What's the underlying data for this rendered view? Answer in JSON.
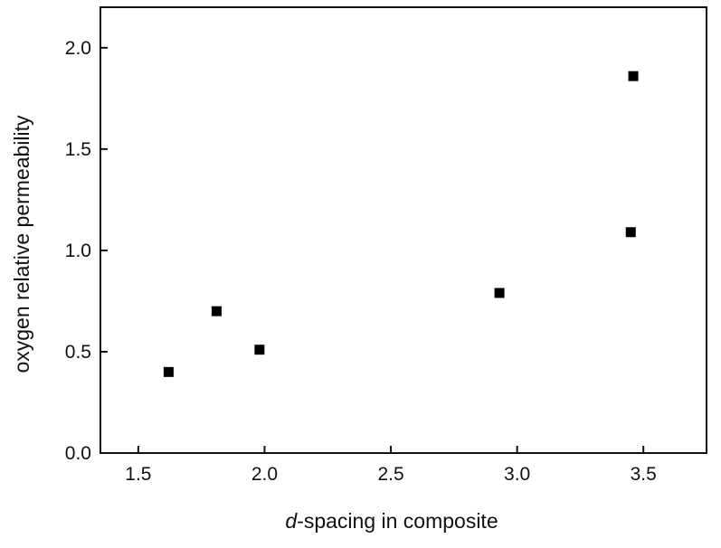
{
  "chart_data": {
    "type": "scatter",
    "xlabel_italic": "d",
    "xlabel_rest": "-spacing in composite",
    "ylabel": "oxygen relative permeability",
    "xlim": [
      1.35,
      3.75
    ],
    "ylim": [
      0.0,
      2.2
    ],
    "xticks": [
      "1.5",
      "2.0",
      "2.5",
      "3.0",
      "3.5"
    ],
    "yticks": [
      "0.0",
      "0.5",
      "1.0",
      "1.5",
      "2.0"
    ],
    "x": [
      1.62,
      1.81,
      1.98,
      2.93,
      3.45,
      3.46
    ],
    "y": [
      0.4,
      0.7,
      0.51,
      0.79,
      1.09,
      1.86
    ],
    "marker": "square",
    "marker_color": "#000000",
    "grid": false,
    "legend": "none"
  }
}
